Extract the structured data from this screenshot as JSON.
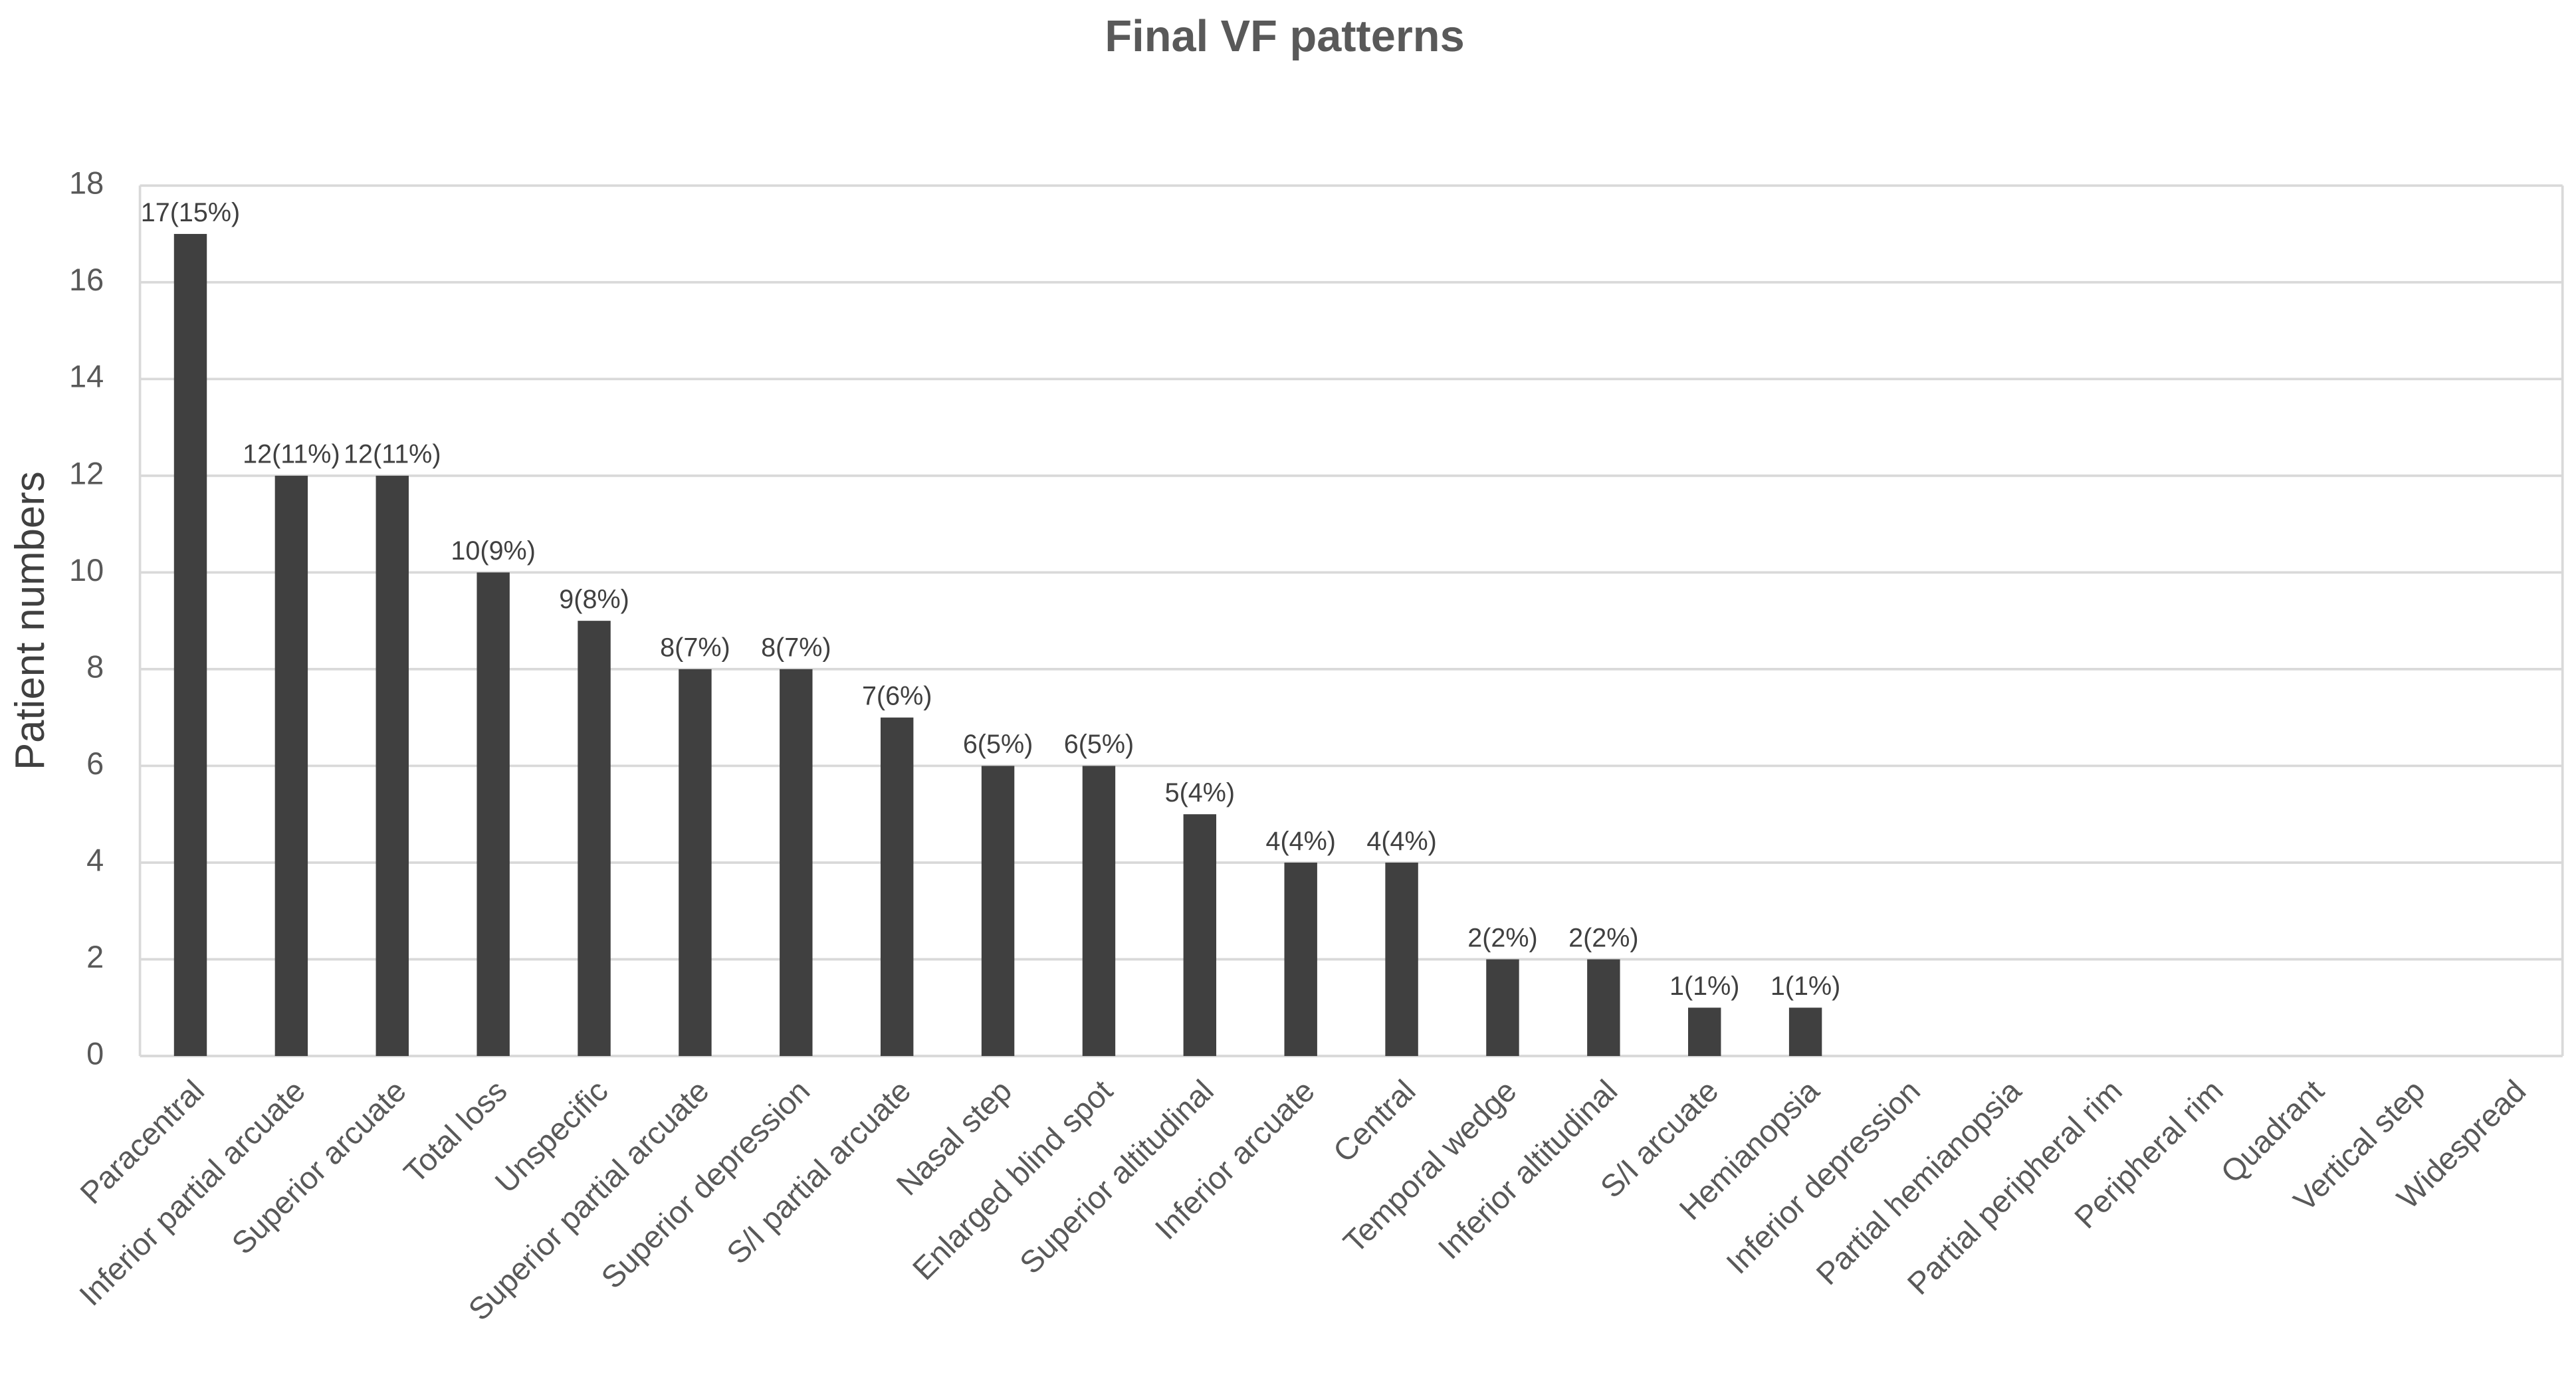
{
  "chart_data": {
    "type": "bar",
    "title": "Final VF patterns",
    "y_label": "Patient numbers",
    "categories": [
      "Paracentral",
      "Inferior partial arcuate",
      "Superior arcuate",
      "Total loss",
      "Unspecific",
      "Superior partial arcuate",
      "Superior depression",
      "S/I partial arcuate",
      "Nasal step",
      "Enlarged blind spot",
      "Superior altitudinal",
      "Inferior arcuate",
      "Central",
      "Temporal wedge",
      "Inferior altitudinal",
      "S/I arcuate",
      "Hemianopsia",
      "Inferior depression",
      "Partial hemianopsia",
      "Partial peripheral rim",
      "Peripheral rim",
      "Quadrant",
      "Vertical step",
      "Widespread"
    ],
    "values": [
      17,
      12,
      12,
      10,
      9,
      8,
      8,
      7,
      6,
      6,
      5,
      4,
      4,
      2,
      2,
      1,
      1,
      0,
      0,
      0,
      0,
      0,
      0,
      0
    ],
    "value_labels": [
      "17(15%)",
      "12(11%)",
      "12(11%)",
      "10(9%)",
      "9(8%)",
      "8(7%)",
      "8(7%)",
      "7(6%)",
      "6(5%)",
      "6(5%)",
      "5(4%)",
      "4(4%)",
      "4(4%)",
      "2(2%)",
      "2(2%)",
      "1(1%)",
      "1(1%)",
      null,
      null,
      null,
      null,
      null,
      null,
      null
    ],
    "color": "#404040",
    "ylim": [
      0,
      18
    ],
    "yticks": [
      0,
      2,
      4,
      6,
      8,
      10,
      12,
      14,
      16,
      18
    ],
    "grid": true
  }
}
